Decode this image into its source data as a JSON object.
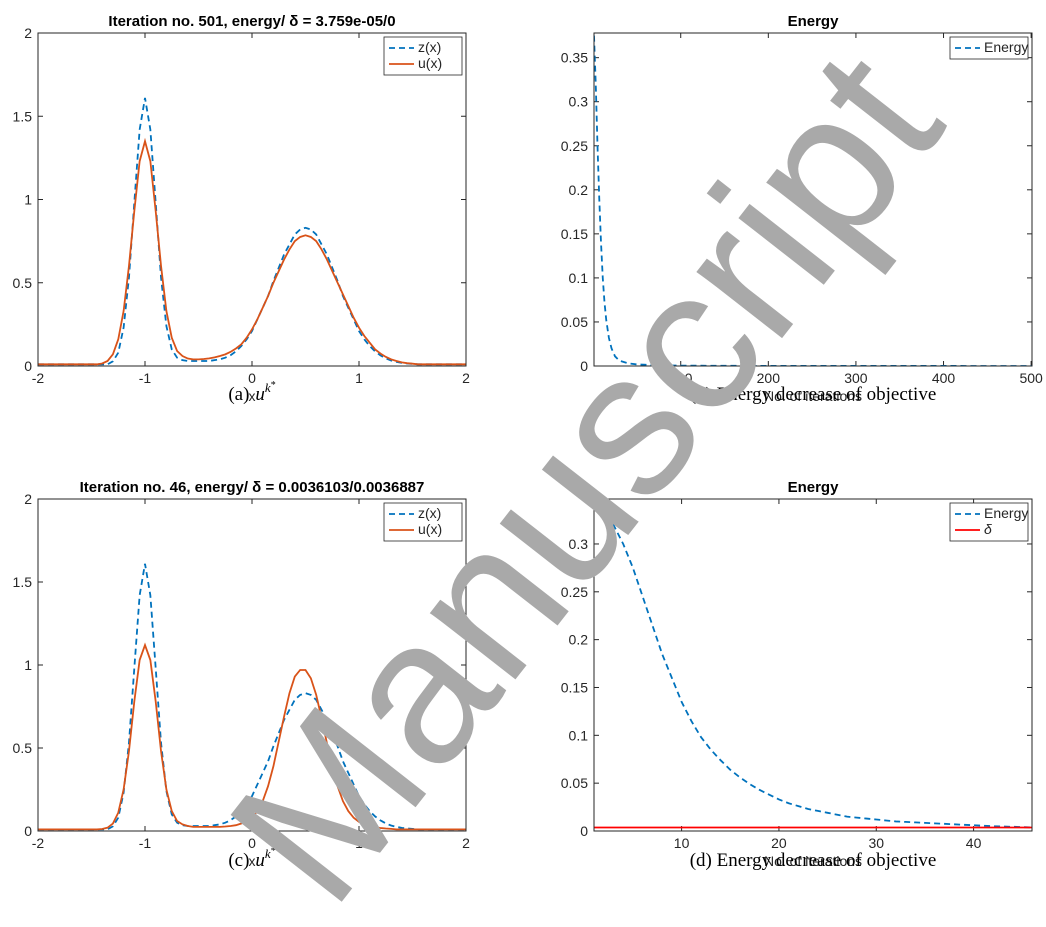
{
  "chart_data": [
    {
      "type": "line",
      "title": "Iteration no. 501, energy/ δ = 3.759e-05/0",
      "xlabel": "x",
      "caption": "(a)",
      "caption_symbol": "u",
      "caption_superscript": "k",
      "caption_superscript_mark": "*",
      "x": [
        -2,
        -1.95,
        -1.9,
        -1.85,
        -1.8,
        -1.75,
        -1.7,
        -1.65,
        -1.6,
        -1.55,
        -1.5,
        -1.45,
        -1.4,
        -1.35,
        -1.3,
        -1.25,
        -1.2,
        -1.15,
        -1.1,
        -1.05,
        -1,
        -0.95,
        -0.9,
        -0.85,
        -0.8,
        -0.75,
        -0.7,
        -0.65,
        -0.6,
        -0.55,
        -0.5,
        -0.45,
        -0.4,
        -0.35,
        -0.3,
        -0.25,
        -0.2,
        -0.15,
        -0.1,
        -0.05,
        0,
        0.05,
        0.1,
        0.15,
        0.2,
        0.25,
        0.3,
        0.35,
        0.4,
        0.45,
        0.5,
        0.55,
        0.6,
        0.65,
        0.7,
        0.75,
        0.8,
        0.85,
        0.9,
        0.95,
        1,
        1.05,
        1.1,
        1.15,
        1.2,
        1.25,
        1.3,
        1.35,
        1.4,
        1.45,
        1.5,
        1.55,
        1.6,
        1.65,
        1.7,
        1.75,
        1.8,
        1.85,
        1.9,
        1.95,
        2
      ],
      "series": [
        {
          "name": "z(x)",
          "color": "#0072BD",
          "line_style": "dashed",
          "values": [
            0.01,
            0.01,
            0.01,
            0.01,
            0.01,
            0.01,
            0.01,
            0.01,
            0.01,
            0.01,
            0.01,
            0.01,
            0.01,
            0.01,
            0.028,
            0.08,
            0.23,
            0.53,
            0.98,
            1.42,
            1.61,
            1.42,
            0.98,
            0.53,
            0.24,
            0.1,
            0.05,
            0.035,
            0.03,
            0.03,
            0.03,
            0.03,
            0.03,
            0.035,
            0.04,
            0.05,
            0.065,
            0.088,
            0.12,
            0.16,
            0.21,
            0.28,
            0.35,
            0.42,
            0.51,
            0.59,
            0.67,
            0.73,
            0.79,
            0.82,
            0.83,
            0.82,
            0.79,
            0.73,
            0.67,
            0.59,
            0.51,
            0.42,
            0.35,
            0.28,
            0.21,
            0.16,
            0.12,
            0.088,
            0.064,
            0.046,
            0.033,
            0.025,
            0.019,
            0.015,
            0.013,
            0.01,
            0.01,
            0.01,
            0.01,
            0.01,
            0.01,
            0.01,
            0.01,
            0.01,
            0.01
          ]
        },
        {
          "name": "u(x)",
          "color": "#D95319",
          "line_style": "solid",
          "values": [
            0.01,
            0.01,
            0.01,
            0.01,
            0.01,
            0.01,
            0.01,
            0.01,
            0.01,
            0.01,
            0.01,
            0.01,
            0.015,
            0.03,
            0.07,
            0.16,
            0.33,
            0.6,
            0.93,
            1.23,
            1.35,
            1.23,
            0.93,
            0.6,
            0.33,
            0.17,
            0.09,
            0.06,
            0.045,
            0.04,
            0.04,
            0.042,
            0.046,
            0.052,
            0.06,
            0.07,
            0.085,
            0.105,
            0.13,
            0.17,
            0.22,
            0.28,
            0.35,
            0.42,
            0.5,
            0.57,
            0.64,
            0.7,
            0.75,
            0.775,
            0.785,
            0.775,
            0.75,
            0.7,
            0.64,
            0.57,
            0.5,
            0.43,
            0.36,
            0.29,
            0.23,
            0.18,
            0.14,
            0.1,
            0.075,
            0.055,
            0.04,
            0.03,
            0.022,
            0.017,
            0.014,
            0.01,
            0.01,
            0.01,
            0.01,
            0.01,
            0.01,
            0.01,
            0.01,
            0.01,
            0.01
          ]
        }
      ],
      "xlim": [
        -2,
        2
      ],
      "xticks": [
        -2,
        -1,
        0,
        1,
        2
      ],
      "ylim": [
        0,
        2
      ],
      "yticks": [
        0,
        0.5,
        1,
        1.5,
        2
      ],
      "legend": "northeast"
    },
    {
      "type": "line",
      "title": "Energy",
      "xlabel": "No. of iterations",
      "caption": "(b) Energy decrease of objective",
      "x": [
        1,
        3,
        5,
        7,
        9,
        11,
        13,
        15,
        18,
        21,
        25,
        30,
        40,
        50,
        75,
        100,
        200,
        300,
        400,
        501
      ],
      "series": [
        {
          "name": "Energy",
          "color": "#0072BD",
          "line_style": "dashed",
          "values": [
            0.375,
            0.32,
            0.25,
            0.19,
            0.14,
            0.1,
            0.072,
            0.052,
            0.032,
            0.02,
            0.011,
            0.006,
            0.003,
            0.0018,
            0.0008,
            0.0004,
            0.0001,
            5e-05,
            4e-05,
            3.76e-05
          ]
        }
      ],
      "xlim": [
        1,
        501
      ],
      "xticks": [
        100,
        200,
        300,
        400,
        500
      ],
      "ylim": [
        0,
        0.378
      ],
      "yticks": [
        0,
        0.05,
        0.1,
        0.15,
        0.2,
        0.25,
        0.3,
        0.35
      ],
      "legend": "northeast"
    },
    {
      "type": "line",
      "title": "Iteration no. 46, energy/ δ = 0.0036103/0.0036887",
      "xlabel": "x",
      "caption": "(c)",
      "caption_symbol": "u",
      "caption_superscript": "k",
      "caption_superscript_mark": "*",
      "x": [
        -2,
        -1.95,
        -1.9,
        -1.85,
        -1.8,
        -1.75,
        -1.7,
        -1.65,
        -1.6,
        -1.55,
        -1.5,
        -1.45,
        -1.4,
        -1.35,
        -1.3,
        -1.25,
        -1.2,
        -1.15,
        -1.1,
        -1.05,
        -1,
        -0.95,
        -0.9,
        -0.85,
        -0.8,
        -0.75,
        -0.7,
        -0.65,
        -0.6,
        -0.55,
        -0.5,
        -0.45,
        -0.4,
        -0.35,
        -0.3,
        -0.25,
        -0.2,
        -0.15,
        -0.1,
        -0.05,
        0,
        0.05,
        0.1,
        0.15,
        0.2,
        0.25,
        0.3,
        0.35,
        0.4,
        0.45,
        0.5,
        0.55,
        0.6,
        0.65,
        0.7,
        0.75,
        0.8,
        0.85,
        0.9,
        0.95,
        1,
        1.05,
        1.1,
        1.15,
        1.2,
        1.25,
        1.3,
        1.35,
        1.4,
        1.45,
        1.5,
        1.55,
        1.6,
        1.65,
        1.7,
        1.75,
        1.8,
        1.85,
        1.9,
        1.95,
        2
      ],
      "series": [
        {
          "name": "z(x)",
          "color": "#0072BD",
          "line_style": "dashed",
          "values": [
            0.01,
            0.01,
            0.01,
            0.01,
            0.01,
            0.01,
            0.01,
            0.01,
            0.01,
            0.01,
            0.01,
            0.01,
            0.01,
            0.01,
            0.028,
            0.08,
            0.23,
            0.53,
            0.98,
            1.42,
            1.61,
            1.42,
            0.98,
            0.53,
            0.24,
            0.1,
            0.05,
            0.035,
            0.03,
            0.03,
            0.03,
            0.03,
            0.03,
            0.035,
            0.04,
            0.05,
            0.065,
            0.088,
            0.12,
            0.16,
            0.21,
            0.28,
            0.35,
            0.42,
            0.51,
            0.59,
            0.67,
            0.73,
            0.79,
            0.82,
            0.83,
            0.82,
            0.79,
            0.73,
            0.67,
            0.59,
            0.51,
            0.42,
            0.35,
            0.28,
            0.21,
            0.16,
            0.12,
            0.088,
            0.064,
            0.046,
            0.033,
            0.025,
            0.019,
            0.015,
            0.013,
            0.01,
            0.01,
            0.01,
            0.01,
            0.01,
            0.01,
            0.01,
            0.01,
            0.01,
            0.01
          ]
        },
        {
          "name": "u(x)",
          "color": "#D95319",
          "line_style": "solid",
          "values": [
            0.01,
            0.01,
            0.01,
            0.01,
            0.01,
            0.01,
            0.01,
            0.01,
            0.01,
            0.01,
            0.01,
            0.01,
            0.012,
            0.02,
            0.045,
            0.11,
            0.25,
            0.48,
            0.78,
            1.03,
            1.12,
            1.03,
            0.78,
            0.48,
            0.25,
            0.12,
            0.06,
            0.04,
            0.03,
            0.025,
            0.025,
            0.025,
            0.025,
            0.025,
            0.025,
            0.027,
            0.03,
            0.035,
            0.045,
            0.06,
            0.08,
            0.12,
            0.18,
            0.27,
            0.39,
            0.54,
            0.69,
            0.83,
            0.93,
            0.97,
            0.97,
            0.92,
            0.82,
            0.68,
            0.53,
            0.39,
            0.27,
            0.18,
            0.12,
            0.08,
            0.055,
            0.04,
            0.03,
            0.023,
            0.018,
            0.015,
            0.013,
            0.01,
            0.01,
            0.01,
            0.01,
            0.01,
            0.01,
            0.01,
            0.01,
            0.01,
            0.01,
            0.01,
            0.01,
            0.01,
            0.01
          ]
        }
      ],
      "xlim": [
        -2,
        2
      ],
      "xticks": [
        -2,
        -1,
        0,
        1,
        2
      ],
      "ylim": [
        0,
        2
      ],
      "yticks": [
        0,
        0.5,
        1,
        1.5,
        2
      ],
      "legend": "northeast"
    },
    {
      "type": "line",
      "title": "Energy",
      "xlabel": "No. of iterations",
      "caption": "(d) Energy decrease of objective",
      "x": [
        1,
        2,
        3,
        4,
        5,
        6,
        7,
        8,
        9,
        10,
        11,
        12,
        13,
        14,
        15,
        16,
        17,
        18,
        19,
        20,
        21,
        22,
        23,
        24,
        25,
        26,
        27,
        28,
        29,
        30,
        31,
        32,
        33,
        34,
        35,
        36,
        37,
        38,
        39,
        40,
        41,
        42,
        43,
        44,
        45,
        46
      ],
      "series": [
        {
          "name": "Energy",
          "color": "#0072BD",
          "line_style": "dashed",
          "values": [
            0.345,
            0.335,
            0.32,
            0.3,
            0.275,
            0.245,
            0.215,
            0.185,
            0.16,
            0.135,
            0.115,
            0.098,
            0.085,
            0.074,
            0.064,
            0.056,
            0.049,
            0.043,
            0.038,
            0.033,
            0.029,
            0.026,
            0.023,
            0.021,
            0.019,
            0.017,
            0.015,
            0.014,
            0.013,
            0.012,
            0.011,
            0.01,
            0.0095,
            0.009,
            0.0085,
            0.008,
            0.0075,
            0.007,
            0.0065,
            0.006,
            0.0055,
            0.005,
            0.0047,
            0.0044,
            0.0041,
            0.0036103
          ]
        },
        {
          "name": "δ",
          "color": "#FF0000",
          "line_style": "solid",
          "values": [
            0.0036887,
            0.0036887,
            0.0036887,
            0.0036887,
            0.0036887,
            0.0036887,
            0.0036887,
            0.0036887,
            0.0036887,
            0.0036887,
            0.0036887,
            0.0036887,
            0.0036887,
            0.0036887,
            0.0036887,
            0.0036887,
            0.0036887,
            0.0036887,
            0.0036887,
            0.0036887,
            0.0036887,
            0.0036887,
            0.0036887,
            0.0036887,
            0.0036887,
            0.0036887,
            0.0036887,
            0.0036887,
            0.0036887,
            0.0036887,
            0.0036887,
            0.0036887,
            0.0036887,
            0.0036887,
            0.0036887,
            0.0036887,
            0.0036887,
            0.0036887,
            0.0036887,
            0.0036887,
            0.0036887,
            0.0036887,
            0.0036887,
            0.0036887,
            0.0036887,
            0.0036887
          ]
        }
      ],
      "xlim": [
        1,
        46
      ],
      "xticks": [
        10,
        20,
        30,
        40
      ],
      "ylim": [
        0,
        0.347
      ],
      "yticks": [
        0,
        0.05,
        0.1,
        0.15,
        0.2,
        0.25,
        0.3
      ],
      "legend": "northeast"
    }
  ],
  "watermark": "Manuscript"
}
